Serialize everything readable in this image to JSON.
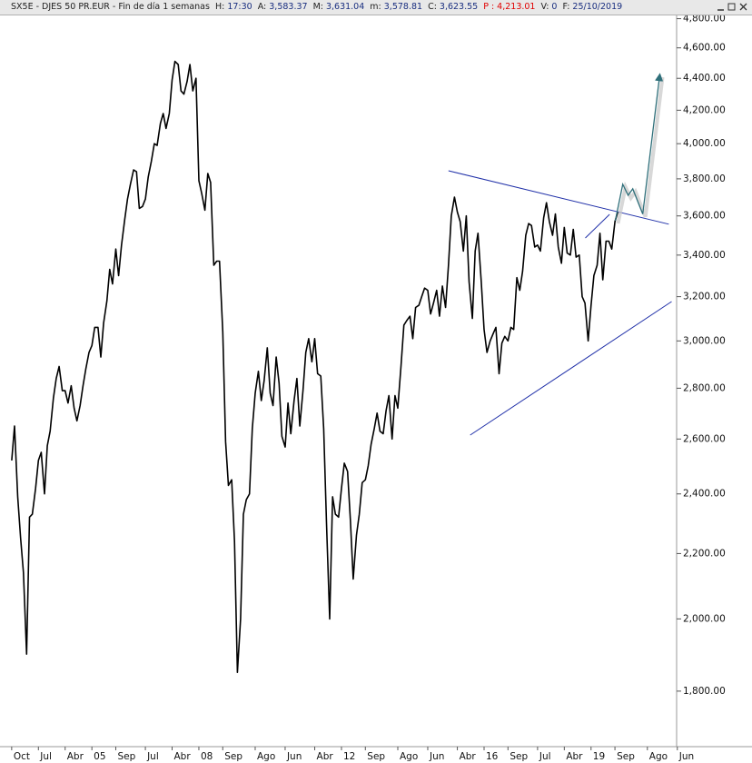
{
  "chart_data": {
    "type": "line",
    "title": "SX5E - DJES 50 PR.EUR - Fin de día 1 semanas",
    "info": [
      {
        "label": "H:",
        "value": "17:30"
      },
      {
        "label": "A:",
        "value": "3,583.37"
      },
      {
        "label": "M:",
        "value": "3,631.04"
      },
      {
        "label": "m:",
        "value": "3,578.81"
      },
      {
        "label": "C:",
        "value": "3,623.55"
      },
      {
        "label": "P :",
        "value": "4,213.01",
        "color": "#e00000"
      },
      {
        "label": "V:",
        "value": "0"
      },
      {
        "label": "F:",
        "value": "25/10/2019"
      }
    ],
    "log_scale": true,
    "color": "#000000",
    "xlim": [
      2002.55,
      2021.4
    ],
    "ylim": [
      1660,
      4900
    ],
    "yticks": [
      {
        "value": 1800,
        "label": "1,800.00"
      },
      {
        "value": 2000,
        "label": "2,000.00"
      },
      {
        "value": 2200,
        "label": "2,200.00"
      },
      {
        "value": 2400,
        "label": "2,400.00"
      },
      {
        "value": 2600,
        "label": "2,600.00"
      },
      {
        "value": 2800,
        "label": "2,800.00"
      },
      {
        "value": 3000,
        "label": "3,000.00"
      },
      {
        "value": 3200,
        "label": "3,200.00"
      },
      {
        "value": 3400,
        "label": "3,400.00"
      },
      {
        "value": 3600,
        "label": "3,600.00"
      },
      {
        "value": 3800,
        "label": "3,800.00"
      },
      {
        "value": 4000,
        "label": "4,000.00"
      },
      {
        "value": 4200,
        "label": "4,200.00"
      },
      {
        "value": 4400,
        "label": "4,400.00"
      },
      {
        "value": 4600,
        "label": "4,600.00"
      },
      {
        "value": 4800,
        "label": "4,800.00"
      }
    ],
    "xticks": [
      {
        "value": 2002.75,
        "label": "Oct"
      },
      {
        "value": 2003.5,
        "label": "Jul"
      },
      {
        "value": 2004.25,
        "label": "Abr"
      },
      {
        "value": 2005,
        "label": "05"
      },
      {
        "value": 2005.67,
        "label": "Sep"
      },
      {
        "value": 2006.5,
        "label": "Jul"
      },
      {
        "value": 2007.25,
        "label": "Abr"
      },
      {
        "value": 2008,
        "label": "08"
      },
      {
        "value": 2008.67,
        "label": "Sep"
      },
      {
        "value": 2009.58,
        "label": "Ago"
      },
      {
        "value": 2010.42,
        "label": "Jun"
      },
      {
        "value": 2011.25,
        "label": "Abr"
      },
      {
        "value": 2012,
        "label": "12"
      },
      {
        "value": 2012.67,
        "label": "Sep"
      },
      {
        "value": 2013.58,
        "label": "Ago"
      },
      {
        "value": 2014.42,
        "label": "Jun"
      },
      {
        "value": 2015.25,
        "label": "Abr"
      },
      {
        "value": 2016,
        "label": "16"
      },
      {
        "value": 2016.67,
        "label": "Sep"
      },
      {
        "value": 2017.5,
        "label": "Jul"
      },
      {
        "value": 2018.25,
        "label": "Abr"
      },
      {
        "value": 2019,
        "label": "19"
      },
      {
        "value": 2019.67,
        "label": "Sep"
      },
      {
        "value": 2020.58,
        "label": "Ago"
      },
      {
        "value": 2021.42,
        "label": "Jun"
      }
    ],
    "x": [
      2002.75,
      2002.83,
      2002.92,
      2003,
      2003.08,
      2003.17,
      2003.25,
      2003.33,
      2003.42,
      2003.5,
      2003.58,
      2003.67,
      2003.75,
      2003.83,
      2003.92,
      2004,
      2004.08,
      2004.17,
      2004.25,
      2004.33,
      2004.42,
      2004.5,
      2004.58,
      2004.67,
      2004.75,
      2004.83,
      2004.92,
      2005,
      2005.08,
      2005.17,
      2005.25,
      2005.33,
      2005.42,
      2005.5,
      2005.58,
      2005.67,
      2005.75,
      2005.83,
      2005.92,
      2006,
      2006.08,
      2006.17,
      2006.25,
      2006.33,
      2006.42,
      2006.5,
      2006.58,
      2006.67,
      2006.75,
      2006.83,
      2006.92,
      2007,
      2007.08,
      2007.17,
      2007.25,
      2007.33,
      2007.42,
      2007.5,
      2007.58,
      2007.67,
      2007.75,
      2007.83,
      2007.92,
      2008,
      2008.08,
      2008.17,
      2008.25,
      2008.33,
      2008.42,
      2008.5,
      2008.58,
      2008.67,
      2008.75,
      2008.83,
      2008.92,
      2009,
      2009.08,
      2009.17,
      2009.25,
      2009.33,
      2009.42,
      2009.5,
      2009.58,
      2009.67,
      2009.75,
      2009.83,
      2009.92,
      2010,
      2010.08,
      2010.17,
      2010.25,
      2010.33,
      2010.42,
      2010.5,
      2010.58,
      2010.67,
      2010.75,
      2010.83,
      2010.92,
      2011,
      2011.08,
      2011.17,
      2011.25,
      2011.33,
      2011.42,
      2011.5,
      2011.58,
      2011.67,
      2011.75,
      2011.83,
      2011.92,
      2012,
      2012.08,
      2012.17,
      2012.25,
      2012.33,
      2012.42,
      2012.5,
      2012.58,
      2012.67,
      2012.75,
      2012.83,
      2012.92,
      2013,
      2013.08,
      2013.17,
      2013.25,
      2013.33,
      2013.42,
      2013.5,
      2013.58,
      2013.67,
      2013.75,
      2013.83,
      2013.92,
      2014,
      2014.08,
      2014.17,
      2014.25,
      2014.33,
      2014.42,
      2014.5,
      2014.58,
      2014.67,
      2014.75,
      2014.83,
      2014.92,
      2015,
      2015.08,
      2015.17,
      2015.25,
      2015.33,
      2015.42,
      2015.5,
      2015.58,
      2015.67,
      2015.75,
      2015.83,
      2015.92,
      2016,
      2016.08,
      2016.17,
      2016.25,
      2016.33,
      2016.42,
      2016.5,
      2016.58,
      2016.67,
      2016.75,
      2016.83,
      2016.92,
      2017,
      2017.08,
      2017.17,
      2017.25,
      2017.33,
      2017.42,
      2017.5,
      2017.58,
      2017.67,
      2017.75,
      2017.83,
      2017.92,
      2018,
      2018.08,
      2018.17,
      2018.25,
      2018.33,
      2018.42,
      2018.5,
      2018.58,
      2018.67,
      2018.75,
      2018.83,
      2018.92,
      2019,
      2019.08,
      2019.17,
      2019.25,
      2019.33,
      2019.42,
      2019.5,
      2019.58,
      2019.67,
      2019.75
    ],
    "values": [
      2520,
      2650,
      2390,
      2250,
      2140,
      1900,
      2320,
      2330,
      2420,
      2520,
      2550,
      2400,
      2575,
      2630,
      2760,
      2840,
      2890,
      2790,
      2790,
      2740,
      2810,
      2720,
      2670,
      2730,
      2810,
      2880,
      2950,
      2980,
      3060,
      3060,
      2930,
      3080,
      3180,
      3330,
      3260,
      3430,
      3300,
      3450,
      3580,
      3690,
      3770,
      3850,
      3840,
      3640,
      3650,
      3690,
      3810,
      3900,
      4000,
      3990,
      4120,
      4180,
      4090,
      4180,
      4390,
      4510,
      4490,
      4320,
      4300,
      4380,
      4490,
      4320,
      4400,
      3790,
      3720,
      3630,
      3830,
      3780,
      3350,
      3370,
      3370,
      3040,
      2590,
      2430,
      2450,
      2240,
      1850,
      2000,
      2330,
      2380,
      2400,
      2640,
      2780,
      2870,
      2750,
      2830,
      2970,
      2780,
      2730,
      2930,
      2820,
      2610,
      2570,
      2740,
      2620,
      2750,
      2840,
      2650,
      2790,
      2950,
      3010,
      2910,
      3010,
      2860,
      2850,
      2640,
      2300,
      2000,
      2390,
      2330,
      2320,
      2420,
      2510,
      2480,
      2310,
      2120,
      2260,
      2330,
      2440,
      2450,
      2500,
      2580,
      2640,
      2700,
      2630,
      2620,
      2710,
      2770,
      2600,
      2770,
      2720,
      2890,
      3070,
      3090,
      3110,
      3010,
      3150,
      3160,
      3200,
      3240,
      3230,
      3120,
      3170,
      3230,
      3110,
      3250,
      3150,
      3350,
      3600,
      3700,
      3620,
      3570,
      3420,
      3600,
      3270,
      3100,
      3420,
      3510,
      3270,
      3050,
      2950,
      3000,
      3030,
      3060,
      2860,
      2990,
      3020,
      3000,
      3060,
      3050,
      3290,
      3230,
      3320,
      3500,
      3560,
      3550,
      3440,
      3450,
      3420,
      3590,
      3670,
      3570,
      3500,
      3610,
      3440,
      3360,
      3540,
      3410,
      3400,
      3530,
      3390,
      3400,
      3200,
      3170,
      3000,
      3160,
      3300,
      3350,
      3510,
      3280,
      3470,
      3470,
      3430,
      3570,
      3620
    ],
    "trendlines": [
      {
        "color": "#1f2fa8",
        "x": [
          2015.0,
          2021.18
        ],
        "values": [
          3845,
          3557
        ]
      },
      {
        "color": "#1f2fa8",
        "x": [
          2015.61,
          2021.26
        ],
        "values": [
          2615,
          3177
        ]
      },
      {
        "color": "#1f2fa8",
        "x": [
          2018.84,
          2019.52
        ],
        "values": [
          3486,
          3608
        ]
      }
    ],
    "forecast": {
      "color": "#2f6f7a",
      "x": [
        2019.68,
        2019.89,
        2020.04,
        2020.17,
        2020.45,
        2020.93
      ],
      "values": [
        3575,
        3770,
        3710,
        3745,
        3610,
        4425
      ]
    }
  }
}
